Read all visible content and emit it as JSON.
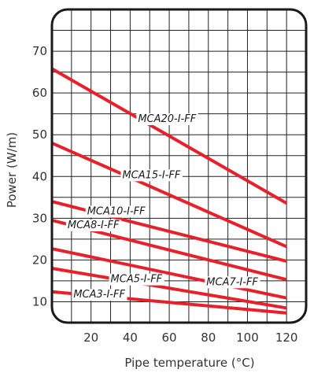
{
  "chart_data": {
    "type": "line",
    "title": "",
    "xlabel": "Pipe temperature (°C)",
    "ylabel": "Power (W/m)",
    "xlim": [
      0,
      130
    ],
    "ylim": [
      5,
      80
    ],
    "x_ticks": [
      20,
      40,
      60,
      80,
      100,
      120
    ],
    "y_ticks": [
      10,
      20,
      30,
      40,
      50,
      60,
      70
    ],
    "grid": true,
    "line_color": "#e8202a",
    "series": [
      {
        "name": "MCA20-I-FF",
        "x": [
          0,
          120
        ],
        "y": [
          65.8,
          33.6
        ]
      },
      {
        "name": "MCA15-I-FF",
        "x": [
          0,
          120
        ],
        "y": [
          48.0,
          23.2
        ]
      },
      {
        "name": "MCA10-I-FF",
        "x": [
          0,
          120
        ],
        "y": [
          34.0,
          19.7
        ]
      },
      {
        "name": "MCA8-I-FF",
        "x": [
          0,
          120
        ],
        "y": [
          29.5,
          15.3
        ]
      },
      {
        "name": "MCA7-I-FF",
        "x": [
          0,
          120
        ],
        "y": [
          22.7,
          10.9
        ]
      },
      {
        "name": "MCA5-I-FF",
        "x": [
          0,
          120
        ],
        "y": [
          18.0,
          8.5
        ]
      },
      {
        "name": "MCA3-I-FF",
        "x": [
          0,
          120
        ],
        "y": [
          12.4,
          7.3
        ]
      }
    ]
  }
}
